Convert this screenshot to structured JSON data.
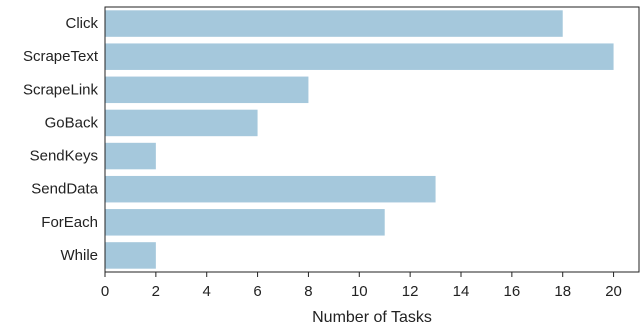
{
  "chart_data": {
    "type": "bar",
    "orientation": "horizontal",
    "categories": [
      "Click",
      "ScrapeText",
      "ScrapeLink",
      "GoBack",
      "SendKeys",
      "SendData",
      "ForEach",
      "While"
    ],
    "values": [
      18,
      20,
      8,
      6,
      2,
      13,
      11,
      2
    ],
    "xlabel": "Number of Tasks",
    "ylabel": "",
    "xlim": [
      0,
      21
    ],
    "xticks": [
      0,
      2,
      4,
      6,
      8,
      10,
      12,
      14,
      16,
      18,
      20
    ],
    "grid": false,
    "bar_color": "#a5c8dc",
    "axis_color": "#222222"
  }
}
